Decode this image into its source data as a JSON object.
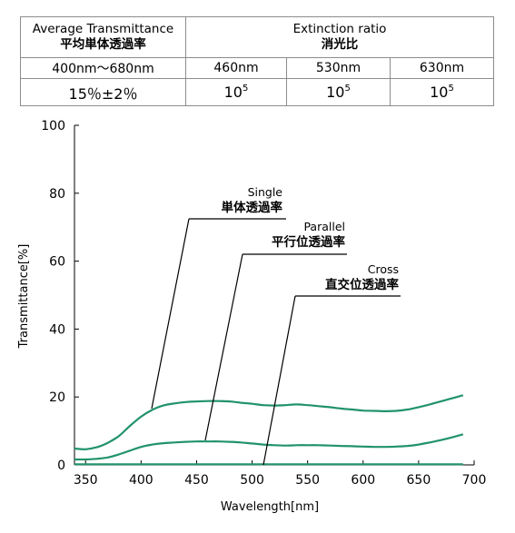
{
  "spec_table": {
    "headers": {
      "avg_en": "Average Transmittance",
      "avg_jp": "平均単体透過率",
      "ext_en": "Extinction ratio",
      "ext_jp": "消光比"
    },
    "band_row": [
      "400nm～680nm",
      "460nm",
      "530nm",
      "630nm"
    ],
    "value_row": {
      "transmittance": "15％±2％",
      "ratios": [
        {
          "base": "10",
          "exp": "5"
        },
        {
          "base": "10",
          "exp": "5"
        },
        {
          "base": "10",
          "exp": "5"
        }
      ]
    }
  },
  "chart_data": {
    "type": "line",
    "xlabel": "Wavelength[nm]",
    "ylabel": "Transmittance[%]",
    "xlim": [
      340,
      700
    ],
    "ylim": [
      0,
      100
    ],
    "xticks": [
      350,
      400,
      450,
      500,
      550,
      600,
      650,
      700
    ],
    "yticks": [
      0,
      20,
      40,
      60,
      80,
      100
    ],
    "grid": false,
    "line_color": "#21936a",
    "series": [
      {
        "name": "Single 単体透過率",
        "x": [
          340,
          350,
          360,
          370,
          380,
          390,
          400,
          410,
          420,
          430,
          440,
          450,
          460,
          470,
          480,
          490,
          500,
          510,
          520,
          530,
          540,
          550,
          560,
          570,
          580,
          590,
          600,
          610,
          620,
          630,
          640,
          650,
          660,
          670,
          680,
          690
        ],
        "values": [
          4.8,
          4.6,
          5.2,
          6.5,
          8.5,
          11.5,
          14.2,
          16.2,
          17.5,
          18.1,
          18.5,
          18.7,
          18.8,
          18.8,
          18.7,
          18.3,
          18.0,
          17.6,
          17.5,
          17.6,
          17.8,
          17.6,
          17.3,
          17.0,
          16.6,
          16.3,
          16.0,
          15.9,
          15.8,
          15.9,
          16.3,
          17.0,
          17.8,
          18.7,
          19.6,
          20.5
        ]
      },
      {
        "name": "Parallel 平行位透過率",
        "x": [
          340,
          350,
          360,
          370,
          380,
          390,
          400,
          410,
          420,
          430,
          440,
          450,
          460,
          470,
          480,
          490,
          500,
          510,
          520,
          530,
          540,
          550,
          560,
          570,
          580,
          590,
          600,
          610,
          620,
          630,
          640,
          650,
          660,
          670,
          680,
          690
        ],
        "values": [
          1.6,
          1.6,
          1.8,
          2.2,
          3.1,
          4.2,
          5.3,
          6.0,
          6.4,
          6.6,
          6.8,
          6.9,
          6.9,
          6.9,
          6.8,
          6.6,
          6.3,
          6.0,
          5.8,
          5.7,
          5.8,
          5.8,
          5.8,
          5.7,
          5.6,
          5.5,
          5.4,
          5.3,
          5.3,
          5.4,
          5.6,
          6.0,
          6.6,
          7.3,
          8.1,
          9.0
        ]
      },
      {
        "name": "Cross 直交位透過率",
        "x": [
          340,
          400,
          500,
          600,
          690
        ],
        "values": [
          0.2,
          0.2,
          0.2,
          0.2,
          0.2
        ]
      }
    ],
    "annotations": [
      {
        "en": "Single",
        "jp": "単体透過率"
      },
      {
        "en": "Parallel",
        "jp": "平行位透過率"
      },
      {
        "en": "Cross",
        "jp": "直交位透過率"
      }
    ]
  }
}
